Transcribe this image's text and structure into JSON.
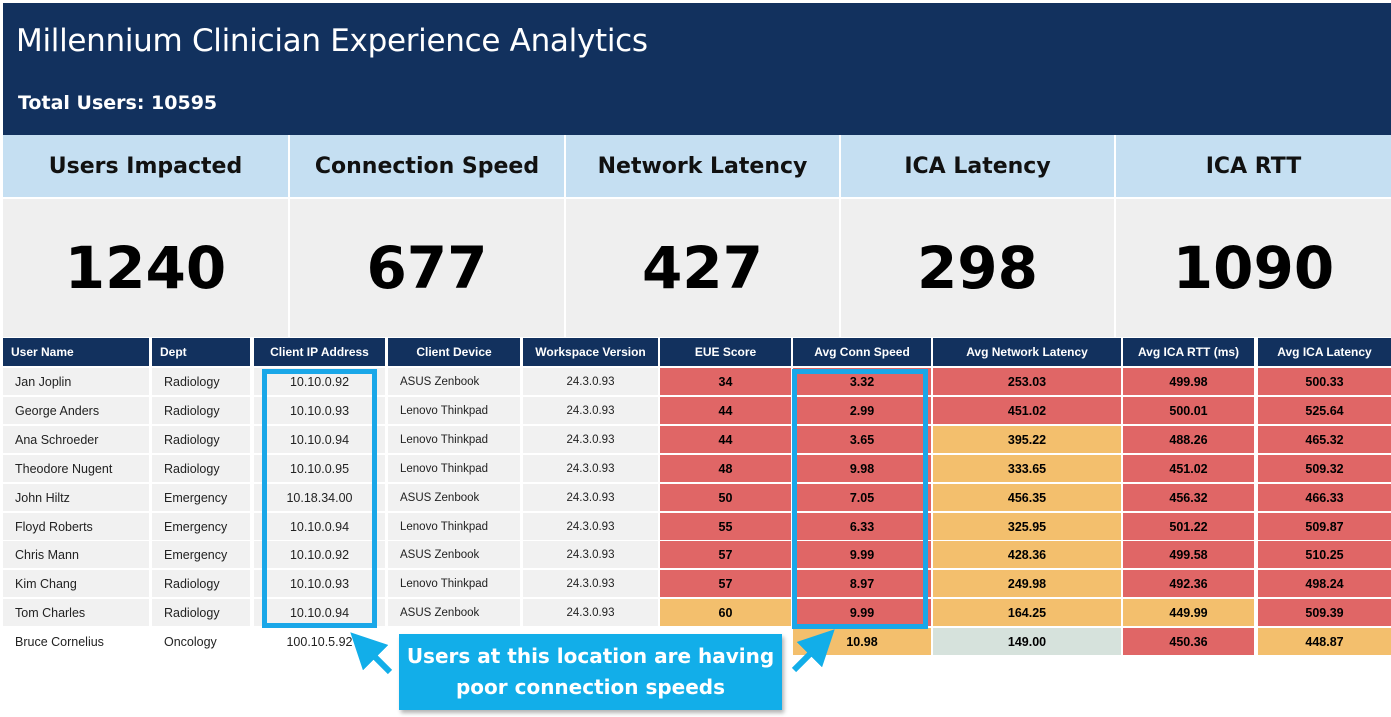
{
  "header": {
    "title": "Millennium Clinician Experience Analytics",
    "total_users": "Total Users: 10595"
  },
  "kpis": [
    {
      "label": "Users Impacted",
      "value": "1240"
    },
    {
      "label": "Connection Speed",
      "value": "677"
    },
    {
      "label": "Network Latency",
      "value": "427"
    },
    {
      "label": "ICA Latency",
      "value": "298"
    },
    {
      "label": "ICA RTT",
      "value": "1090"
    }
  ],
  "table": {
    "columns": [
      "User Name",
      "Dept",
      "Client IP Address",
      "Client Device",
      "Workspace Version",
      "EUE Score",
      "Avg Conn Speed",
      "Avg Network Latency",
      "Avg ICA RTT (ms)",
      "Avg ICA Latency"
    ],
    "rows": [
      {
        "name": "Jan Joplin",
        "dept": "Radiology",
        "ip": "10.10.0.92",
        "device": "ASUS Zenbook",
        "version": "24.3.0.93",
        "eue": "34",
        "conn": "3.32",
        "netlat": "253.03",
        "rtt": "499.98",
        "icalat": "500.33"
      },
      {
        "name": "George Anders",
        "dept": "Radiology",
        "ip": "10.10.0.93",
        "device": "Lenovo Thinkpad",
        "version": "24.3.0.93",
        "eue": "44",
        "conn": "2.99",
        "netlat": "451.02",
        "rtt": "500.01",
        "icalat": "525.64"
      },
      {
        "name": "Ana Schroeder",
        "dept": "Radiology",
        "ip": "10.10.0.94",
        "device": "Lenovo Thinkpad",
        "version": "24.3.0.93",
        "eue": "44",
        "conn": "3.65",
        "netlat": "395.22",
        "rtt": "488.26",
        "icalat": "465.32"
      },
      {
        "name": "Theodore Nugent",
        "dept": "Radiology",
        "ip": "10.10.0.95",
        "device": "Lenovo Thinkpad",
        "version": "24.3.0.93",
        "eue": "48",
        "conn": "9.98",
        "netlat": "333.65",
        "rtt": "451.02",
        "icalat": "509.32"
      },
      {
        "name": "John Hiltz",
        "dept": "Emergency",
        "ip": "10.18.34.00",
        "device": "ASUS Zenbook",
        "version": "24.3.0.93",
        "eue": "50",
        "conn": "7.05",
        "netlat": "456.35",
        "rtt": "456.32",
        "icalat": "466.33"
      },
      {
        "name": "Floyd Roberts",
        "dept": "Emergency",
        "ip": "10.10.0.94",
        "device": "Lenovo Thinkpad",
        "version": "24.3.0.93",
        "eue": "55",
        "conn": "6.33",
        "netlat": "325.95",
        "rtt": "501.22",
        "icalat": "509.87"
      },
      {
        "name": "Chris Mann",
        "dept": "Emergency",
        "ip": "10.10.0.92",
        "device": "ASUS Zenbook",
        "version": "24.3.0.93",
        "eue": "57",
        "conn": "9.99",
        "netlat": "428.36",
        "rtt": "499.58",
        "icalat": "510.25"
      },
      {
        "name": "Kim Chang",
        "dept": "Radiology",
        "ip": "10.10.0.93",
        "device": "Lenovo Thinkpad",
        "version": "24.3.0.93",
        "eue": "57",
        "conn": "8.97",
        "netlat": "249.98",
        "rtt": "492.36",
        "icalat": "498.24"
      },
      {
        "name": "Tom Charles",
        "dept": "Radiology",
        "ip": "10.10.0.94",
        "device": "ASUS Zenbook",
        "version": "24.3.0.93",
        "eue": "60",
        "conn": "9.99",
        "netlat": "164.25",
        "rtt": "449.99",
        "icalat": "509.39"
      },
      {
        "name": "Bruce Cornelius",
        "dept": "Oncology",
        "ip": "100.10.5.92",
        "device": "",
        "version": "",
        "eue": "",
        "conn": "10.98",
        "netlat": "149.00",
        "rtt": "450.36",
        "icalat": "448.87"
      }
    ]
  },
  "colors": {
    "header_bg": "#12315e",
    "kpi_label_bg": "#c5dff2",
    "kpi_value_bg": "#efefef",
    "red": "#e06666",
    "orange": "#f3bf6d",
    "light_green": "#d6e2dc",
    "callout": "#12aee9"
  },
  "callout": {
    "line1": "Users at this location are having",
    "line2": "poor connection speeds"
  }
}
